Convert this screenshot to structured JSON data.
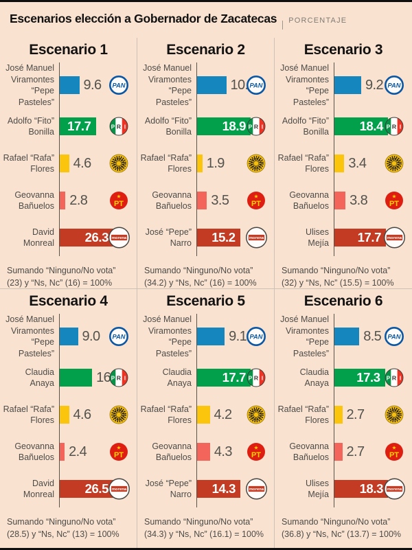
{
  "header": {
    "title": "Escenarios elección a Gobernador de Zacatecas",
    "unit": "PORCENTAJE"
  },
  "colors": {
    "background": "#FAE2D0",
    "divider": "#CCC1B4",
    "axis": "#56544B",
    "text": "#4C4B47",
    "value_outside": "#53524C",
    "value_inside": "#FFFFFF"
  },
  "icons": {
    "pt_star": "★"
  },
  "parties": {
    "PAN": {
      "name": "PAN",
      "bar_color": "#1687BE",
      "logo_blue": "#0B57A4",
      "icon": "pan-logo-icon"
    },
    "PRI": {
      "name": "PRI",
      "bar_color": "#03A04C",
      "logo_green": "#089247",
      "logo_red": "#EC3324",
      "icon": "pri-logo-icon"
    },
    "PRD": {
      "name": "PRD",
      "bar_color": "#FBC40D",
      "logo_yellow": "#F3BE0F",
      "logo_black": "#201C10",
      "icon": "prd-logo-icon"
    },
    "PT": {
      "name": "PT",
      "bar_color": "#F3655A",
      "logo_red": "#DF1E12",
      "logo_yellow": "#FFD204",
      "icon": "pt-logo-icon"
    },
    "MORENA": {
      "name": "morena",
      "bar_color": "#C23B22",
      "icon": "morena-logo-icon"
    }
  },
  "chart_data": {
    "type": "bar",
    "orientation": "horizontal",
    "layout": "3x2 grid of small multiples, independent scale per panel (longest bar fixed width)",
    "title": "Escenarios elección a Gobernador de Zacatecas",
    "unit": "PORCENTAJE",
    "scenarios": [
      {
        "label": "Escenario 1",
        "bars": [
          {
            "candidate_lines": [
              "José Manuel",
              "Viramontes",
              "“Pepe",
              "Pasteles”"
            ],
            "party": "PAN",
            "value": 9.6,
            "value_label": "9.6",
            "label_inside": false
          },
          {
            "candidate_lines": [
              "Adolfo “Fito”",
              "Bonilla"
            ],
            "party": "PRI",
            "value": 17.7,
            "value_label": "17.7",
            "label_inside": true
          },
          {
            "candidate_lines": [
              "Rafael “Rafa”",
              "Flores"
            ],
            "party": "PRD",
            "value": 4.6,
            "value_label": "4.6",
            "label_inside": false
          },
          {
            "candidate_lines": [
              "Geovanna",
              "Bañuelos"
            ],
            "party": "PT",
            "value": 2.8,
            "value_label": "2.8",
            "label_inside": false
          },
          {
            "candidate_lines": [
              "David",
              "Monreal"
            ],
            "party": "MORENA",
            "value": 26.3,
            "value_label": "26.3",
            "label_inside": true
          }
        ],
        "footnote": "Sumando “Ninguno/No vota” (23) y “Ns, Nc” (16) = 100%"
      },
      {
        "label": "Escenario 2",
        "bars": [
          {
            "candidate_lines": [
              "José Manuel",
              "Viramontes",
              "“Pepe",
              "Pasteles”"
            ],
            "party": "PAN",
            "value": 10.3,
            "value_label": "10.3",
            "label_inside": false
          },
          {
            "candidate_lines": [
              "Adolfo “Fito”",
              "Bonilla"
            ],
            "party": "PRI",
            "value": 18.9,
            "value_label": "18.9",
            "label_inside": true
          },
          {
            "candidate_lines": [
              "Rafael “Rafa”",
              "Flores"
            ],
            "party": "PRD",
            "value": 1.9,
            "value_label": "1.9",
            "label_inside": false
          },
          {
            "candidate_lines": [
              "Geovanna",
              "Bañuelos"
            ],
            "party": "PT",
            "value": 3.5,
            "value_label": "3.5",
            "label_inside": false
          },
          {
            "candidate_lines": [
              "José “Pepe”",
              "Narro"
            ],
            "party": "MORENA",
            "value": 15.2,
            "value_label": "15.2",
            "label_inside": true
          }
        ],
        "footnote": "Sumando “Ninguno/No vota” (34.2) y “Ns, Nc” (16) = 100%"
      },
      {
        "label": "Escenario 3",
        "bars": [
          {
            "candidate_lines": [
              "José Manuel",
              "Viramontes",
              "“Pepe",
              "Pasteles”"
            ],
            "party": "PAN",
            "value": 9.2,
            "value_label": "9.2",
            "label_inside": false
          },
          {
            "candidate_lines": [
              "Adolfo “Fito”",
              "Bonilla"
            ],
            "party": "PRI",
            "value": 18.4,
            "value_label": "18.4",
            "label_inside": true
          },
          {
            "candidate_lines": [
              "Rafael “Rafa”",
              "Flores"
            ],
            "party": "PRD",
            "value": 3.4,
            "value_label": "3.4",
            "label_inside": false
          },
          {
            "candidate_lines": [
              "Geovanna",
              "Bañuelos"
            ],
            "party": "PT",
            "value": 3.8,
            "value_label": "3.8",
            "label_inside": false
          },
          {
            "candidate_lines": [
              "Ulises",
              "Mejía"
            ],
            "party": "MORENA",
            "value": 17.7,
            "value_label": "17.7",
            "label_inside": true
          }
        ],
        "footnote": "Sumando “Ninguno/No vota” (32) y “Ns, Nc” (15.5) = 100%"
      },
      {
        "label": "Escenario 4",
        "bars": [
          {
            "candidate_lines": [
              "José Manuel",
              "Viramontes",
              "“Pepe",
              "Pasteles”"
            ],
            "party": "PAN",
            "value": 9.0,
            "value_label": "9.0",
            "label_inside": false
          },
          {
            "candidate_lines": [
              "Claudia",
              "Anaya"
            ],
            "party": "PRI",
            "value": 16.0,
            "value_label": "16.0",
            "label_inside": false
          },
          {
            "candidate_lines": [
              "Rafael “Rafa”",
              "Flores"
            ],
            "party": "PRD",
            "value": 4.6,
            "value_label": "4.6",
            "label_inside": false
          },
          {
            "candidate_lines": [
              "Geovanna",
              "Bañuelos"
            ],
            "party": "PT",
            "value": 2.4,
            "value_label": "2.4",
            "label_inside": false
          },
          {
            "candidate_lines": [
              "David",
              "Monreal"
            ],
            "party": "MORENA",
            "value": 26.5,
            "value_label": "26.5",
            "label_inside": true
          }
        ],
        "footnote": "Sumando “Ninguno/No vota” (28.5) y “Ns, Nc” (13) = 100%"
      },
      {
        "label": "Escenario 5",
        "bars": [
          {
            "candidate_lines": [
              "José Manuel",
              "Viramontes",
              "“Pepe",
              "Pasteles”"
            ],
            "party": "PAN",
            "value": 9.1,
            "value_label": "9.1",
            "label_inside": false
          },
          {
            "candidate_lines": [
              "Claudia",
              "Anaya"
            ],
            "party": "PRI",
            "value": 17.7,
            "value_label": "17.7",
            "label_inside": true
          },
          {
            "candidate_lines": [
              "Rafael “Rafa”",
              "Flores"
            ],
            "party": "PRD",
            "value": 4.2,
            "value_label": "4.2",
            "label_inside": false
          },
          {
            "candidate_lines": [
              "Geovanna",
              "Bañuelos"
            ],
            "party": "PT",
            "value": 4.3,
            "value_label": "4.3",
            "label_inside": false
          },
          {
            "candidate_lines": [
              "José “Pepe”",
              "Narro"
            ],
            "party": "MORENA",
            "value": 14.3,
            "value_label": "14.3",
            "label_inside": true
          }
        ],
        "footnote": "Sumando “Ninguno/No vota” (34.3) y “Ns, Nc” (16.1) = 100%"
      },
      {
        "label": "Escenario 6",
        "bars": [
          {
            "candidate_lines": [
              "José Manuel",
              "Viramontes",
              "“Pepe",
              "Pasteles”"
            ],
            "party": "PAN",
            "value": 8.5,
            "value_label": "8.5",
            "label_inside": false
          },
          {
            "candidate_lines": [
              "Claudia",
              "Anaya"
            ],
            "party": "PRI",
            "value": 17.3,
            "value_label": "17.3",
            "label_inside": true
          },
          {
            "candidate_lines": [
              "Rafael “Rafa”",
              "Flores"
            ],
            "party": "PRD",
            "value": 2.7,
            "value_label": "2.7",
            "label_inside": false
          },
          {
            "candidate_lines": [
              "Geovanna",
              "Bañuelos"
            ],
            "party": "PT",
            "value": 2.7,
            "value_label": "2.7",
            "label_inside": false
          },
          {
            "candidate_lines": [
              "Ulises",
              "Mejía"
            ],
            "party": "MORENA",
            "value": 18.3,
            "value_label": "18.3",
            "label_inside": true
          }
        ],
        "footnote": "Sumando “Ninguno/No vota” (36.8) y “Ns, Nc” (13.7) = 100%"
      }
    ]
  }
}
